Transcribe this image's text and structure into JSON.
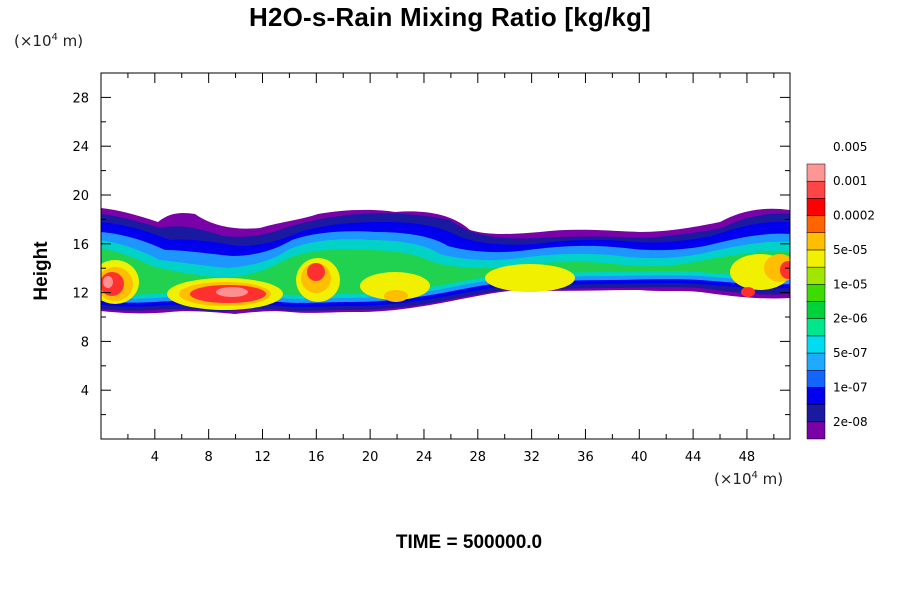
{
  "title": "H2O-s-Rain Mixing Ratio [kg/kg]",
  "y_unit": "(×10",
  "y_unit_exp": "4",
  "y_unit_tail": " m)",
  "x_unit": "(×10",
  "x_unit_exp": "4",
  "x_unit_tail": " m)",
  "ylabel": "Height",
  "time_label": "TIME = 500000.0",
  "chart_data": {
    "type": "heatmap",
    "title": "H2O-s-Rain Mixing Ratio [kg/kg]",
    "ylabel": "Height",
    "xlim": [
      0,
      51.2
    ],
    "ylim": [
      0,
      30
    ],
    "x_ticks": [
      4,
      8,
      12,
      16,
      20,
      24,
      28,
      32,
      36,
      40,
      44,
      48
    ],
    "y_ticks": [
      4,
      8,
      12,
      16,
      20,
      24,
      28
    ],
    "colorbar": {
      "levels": [
        "2e-08",
        "1e-07",
        "5e-07",
        "2e-06",
        "1e-05",
        "5e-05",
        "0.0002",
        "0.001",
        "0.005"
      ],
      "colors": [
        "#7a00a8",
        "#1a1aa0",
        "#0000ee",
        "#1464ff",
        "#1eaaff",
        "#00dcf0",
        "#00e68c",
        "#00d23c",
        "#3cdc00",
        "#a0e600",
        "#f0f000",
        "#ffbe00",
        "#ff6400",
        "#ff0000",
        "#ff4646",
        "#ff9696"
      ]
    },
    "cloud_layer": {
      "base_height": 10.8,
      "top_height_max": 18.6,
      "core_heights": [
        11.5,
        13.5
      ]
    }
  }
}
